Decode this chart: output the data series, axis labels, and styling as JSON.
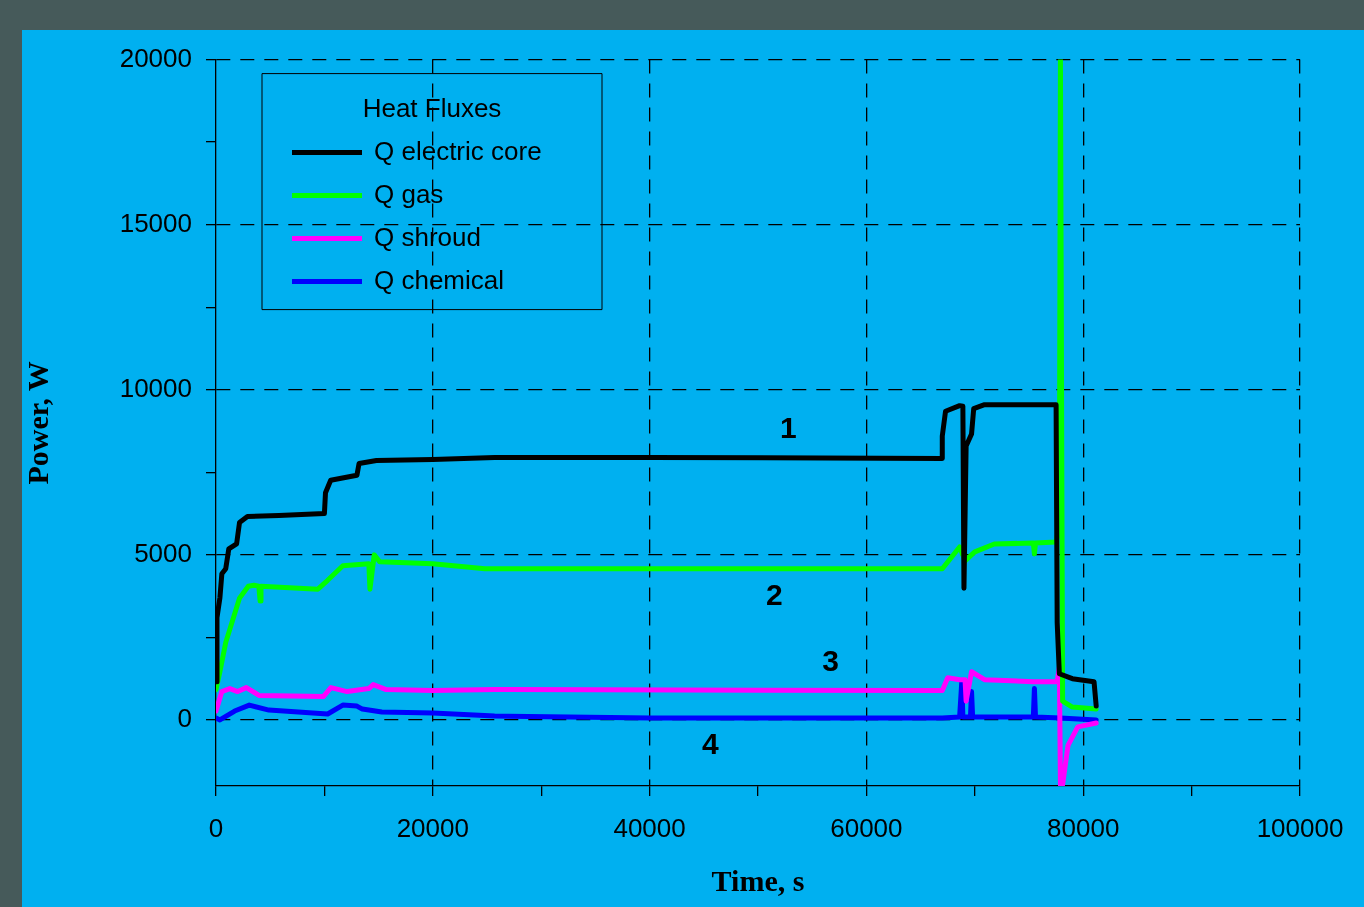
{
  "chart_data": {
    "type": "line",
    "xlabel": "Time, s",
    "ylabel": "Power, W",
    "legend_title": "Heat Fluxes",
    "legend": "top left",
    "grid": true,
    "line_style": "solid",
    "marker": "none",
    "xlim": [
      0,
      100000
    ],
    "xticks": [
      0,
      {
        "value": 10000,
        "label": null
      },
      20000,
      {
        "value": 30000,
        "label": null
      },
      40000,
      {
        "value": 50000,
        "label": null
      },
      60000,
      {
        "value": 70000,
        "label": null
      },
      80000,
      {
        "value": 90000,
        "label": null
      },
      100000
    ],
    "ylim": [
      -2000,
      20000
    ],
    "yticks": [
      0,
      {
        "value": 2500,
        "label": null
      },
      5000,
      {
        "value": 7500,
        "label": null
      },
      10000,
      {
        "value": 12500,
        "label": null
      },
      15000,
      {
        "value": 17500,
        "label": null
      },
      20000
    ],
    "annotations": [
      {
        "text": "1",
        "x": 52800,
        "y": 7950
      },
      {
        "text": "2",
        "x": 51500,
        "y": 4580
      },
      {
        "text": "3",
        "x": 56700,
        "y": 900
      },
      {
        "text": "4",
        "x": 45600,
        "y": 60
      }
    ],
    "series": [
      {
        "name": "Q electric core",
        "color": "#000000",
        "x": [
          0,
          90,
          360,
          540,
          900,
          1180,
          1900,
          2170,
          2900,
          5800,
          10000,
          10100,
          10580,
          13000,
          13200,
          14800,
          20000,
          25700,
          40100,
          67000,
          67000,
          67300,
          68600,
          68900,
          69000,
          69200,
          69700,
          69900,
          70900,
          77500,
          77600,
          77800,
          79000,
          81000,
          81200
        ],
        "values": [
          1160,
          3100,
          3700,
          4430,
          4580,
          5180,
          5330,
          5980,
          6160,
          6190,
          6250,
          6880,
          7260,
          7410,
          7770,
          7860,
          7890,
          7950,
          7950,
          7920,
          8600,
          9350,
          9520,
          9500,
          3990,
          8300,
          8660,
          9430,
          9550,
          9550,
          2950,
          1400,
          1250,
          1160,
          420
        ]
      },
      {
        "name": "Q gas",
        "color": "#00ff00",
        "x": [
          0,
          360,
          900,
          2170,
          2980,
          3500,
          3950,
          4070,
          4150,
          9400,
          10300,
          11700,
          14100,
          14200,
          14600,
          15100,
          20000,
          24800,
          67000,
          68600,
          69100,
          70000,
          71800,
          75400,
          75500,
          75600,
          77500,
          77800,
          77900,
          78100,
          79000,
          81200
        ],
        "values": [
          920,
          1460,
          2350,
          3690,
          4050,
          4080,
          4050,
          3600,
          4050,
          3960,
          4230,
          4670,
          4730,
          3960,
          5000,
          4790,
          4730,
          4580,
          4580,
          5240,
          4820,
          5090,
          5330,
          5360,
          5030,
          5360,
          5390,
          5920,
          20000,
          570,
          390,
          330
        ]
      },
      {
        "name": "Q shroud",
        "color": "#ff00ff",
        "x": [
          0,
          540,
          1270,
          2000,
          2800,
          4000,
          9900,
          10600,
          12100,
          14100,
          14500,
          15700,
          20000,
          25700,
          67000,
          67500,
          68600,
          69100,
          69200,
          69700,
          70900,
          75400,
          77600,
          77800,
          77900,
          78100,
          78600,
          79500,
          81200
        ],
        "values": [
          270,
          860,
          950,
          860,
          980,
          740,
          710,
          980,
          860,
          950,
          1070,
          920,
          890,
          920,
          890,
          1280,
          1220,
          1220,
          570,
          1460,
          1220,
          1160,
          1160,
          1610,
          -1960,
          -1960,
          -770,
          -210,
          -90
        ]
      },
      {
        "name": "Q chemical",
        "color": "#0000ff",
        "x": [
          0,
          360,
          1720,
          3070,
          4880,
          10300,
          11700,
          13000,
          13500,
          15300,
          20000,
          25700,
          40100,
          67000,
          68600,
          68800,
          68900,
          69600,
          69700,
          69800,
          75400,
          75500,
          75600,
          77900,
          81200
        ],
        "values": [
          60,
          0,
          270,
          450,
          300,
          180,
          450,
          420,
          330,
          240,
          210,
          120,
          60,
          60,
          90,
          1160,
          90,
          90,
          860,
          90,
          90,
          950,
          90,
          60,
          0
        ]
      }
    ]
  }
}
